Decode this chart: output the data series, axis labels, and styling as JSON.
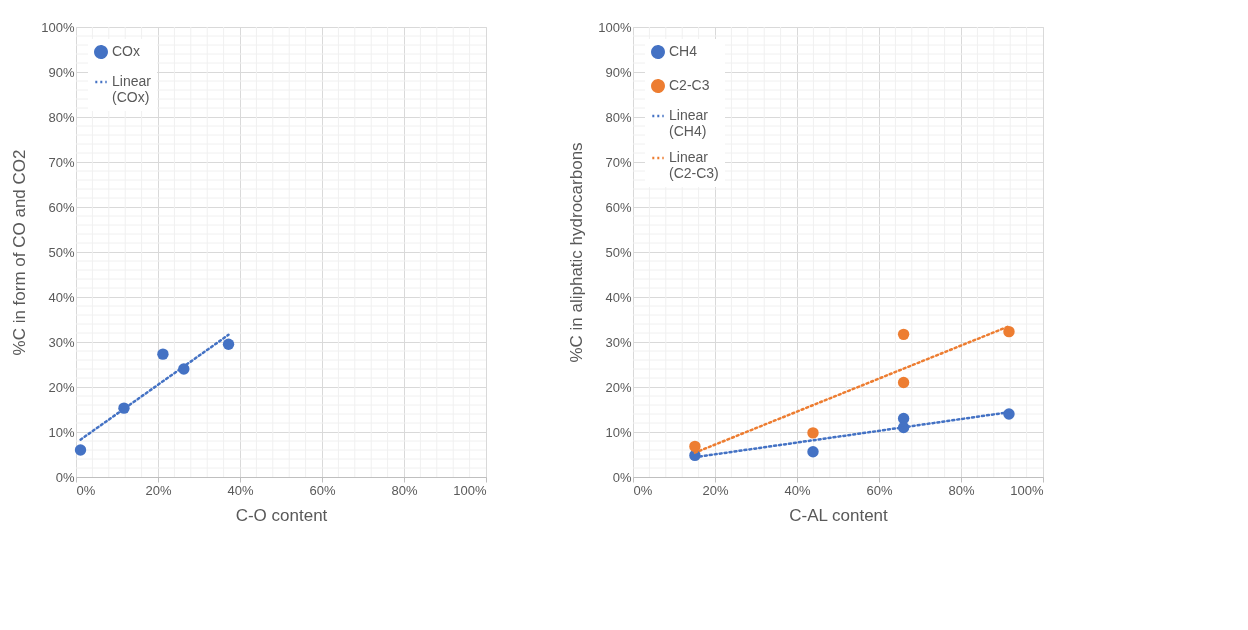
{
  "chart_data": [
    {
      "type": "scatter",
      "xlabel": "C-O content",
      "ylabel": "%C in form of CO and CO2",
      "grid": true,
      "legend": "top left",
      "xlim": [
        0,
        100
      ],
      "ylim": [
        0,
        100
      ],
      "xticks": [
        {
          "value": 0,
          "label": "0%"
        },
        {
          "value": 20,
          "label": "20%"
        },
        {
          "value": 40,
          "label": "40%"
        },
        {
          "value": 60,
          "label": "60%"
        },
        {
          "value": 80,
          "label": "80%"
        },
        {
          "value": 100,
          "label": "100%"
        }
      ],
      "yticks": [
        {
          "value": 0,
          "label": "0%"
        },
        {
          "value": 10,
          "label": "10%"
        },
        {
          "value": 20,
          "label": "20%"
        },
        {
          "value": 30,
          "label": "30%"
        },
        {
          "value": 40,
          "label": "40%"
        },
        {
          "value": 50,
          "label": "50%"
        },
        {
          "value": 60,
          "label": "60%"
        },
        {
          "value": 70,
          "label": "70%"
        },
        {
          "value": 80,
          "label": "80%"
        },
        {
          "value": 90,
          "label": "90%"
        },
        {
          "value": 100,
          "label": "100%"
        }
      ],
      "series": [
        {
          "name": "COx",
          "marker": "circle",
          "color": "#4472c4",
          "x": [
            1.1,
            11.7,
            21.2,
            26.3,
            37.2
          ],
          "values": [
            6.0,
            15.3,
            27.3,
            24.0,
            29.5
          ]
        },
        {
          "name": "Linear (COx)",
          "type": "line",
          "marker": "none",
          "line_style": "dotted",
          "color": "#4472c4",
          "x": [
            1.1,
            37.2
          ],
          "values": [
            8.3,
            31.6
          ]
        }
      ]
    },
    {
      "type": "scatter",
      "xlabel": "C-AL content",
      "ylabel": "%C in aliphatic hydrocarbons",
      "grid": true,
      "legend": "top left",
      "xlim": [
        0,
        100
      ],
      "ylim": [
        0,
        100
      ],
      "xticks": [
        {
          "value": 0,
          "label": "0%"
        },
        {
          "value": 20,
          "label": "20%"
        },
        {
          "value": 40,
          "label": "40%"
        },
        {
          "value": 60,
          "label": "60%"
        },
        {
          "value": 80,
          "label": "80%"
        },
        {
          "value": 100,
          "label": "100%"
        }
      ],
      "yticks": [
        {
          "value": 0,
          "label": "0%"
        },
        {
          "value": 10,
          "label": "10%"
        },
        {
          "value": 20,
          "label": "20%"
        },
        {
          "value": 30,
          "label": "30%"
        },
        {
          "value": 40,
          "label": "40%"
        },
        {
          "value": 50,
          "label": "50%"
        },
        {
          "value": 60,
          "label": "60%"
        },
        {
          "value": 70,
          "label": "70%"
        },
        {
          "value": 80,
          "label": "80%"
        },
        {
          "value": 90,
          "label": "90%"
        },
        {
          "value": 100,
          "label": "100%"
        }
      ],
      "series": [
        {
          "name": "CH4",
          "marker": "circle",
          "color": "#4472c4",
          "x": [
            15.1,
            43.9,
            66.0,
            66.0,
            91.7
          ],
          "values": [
            4.8,
            5.6,
            13.0,
            11.0,
            14.0
          ]
        },
        {
          "name": "C2-C3",
          "marker": "circle",
          "color": "#ed7d31",
          "x": [
            15.1,
            43.9,
            66.0,
            66.0,
            91.7
          ],
          "values": [
            6.8,
            9.8,
            31.7,
            21.0,
            32.3
          ]
        },
        {
          "name": "Linear (CH4)",
          "type": "line",
          "marker": "none",
          "line_style": "dotted",
          "color": "#4472c4",
          "x": [
            15.1,
            91.7
          ],
          "values": [
            4.4,
            14.4
          ]
        },
        {
          "name": "Linear (C2-C3)",
          "type": "line",
          "marker": "none",
          "line_style": "dotted",
          "color": "#ed7d31",
          "x": [
            15.1,
            91.7
          ],
          "values": [
            5.4,
            33.5
          ]
        }
      ]
    }
  ]
}
